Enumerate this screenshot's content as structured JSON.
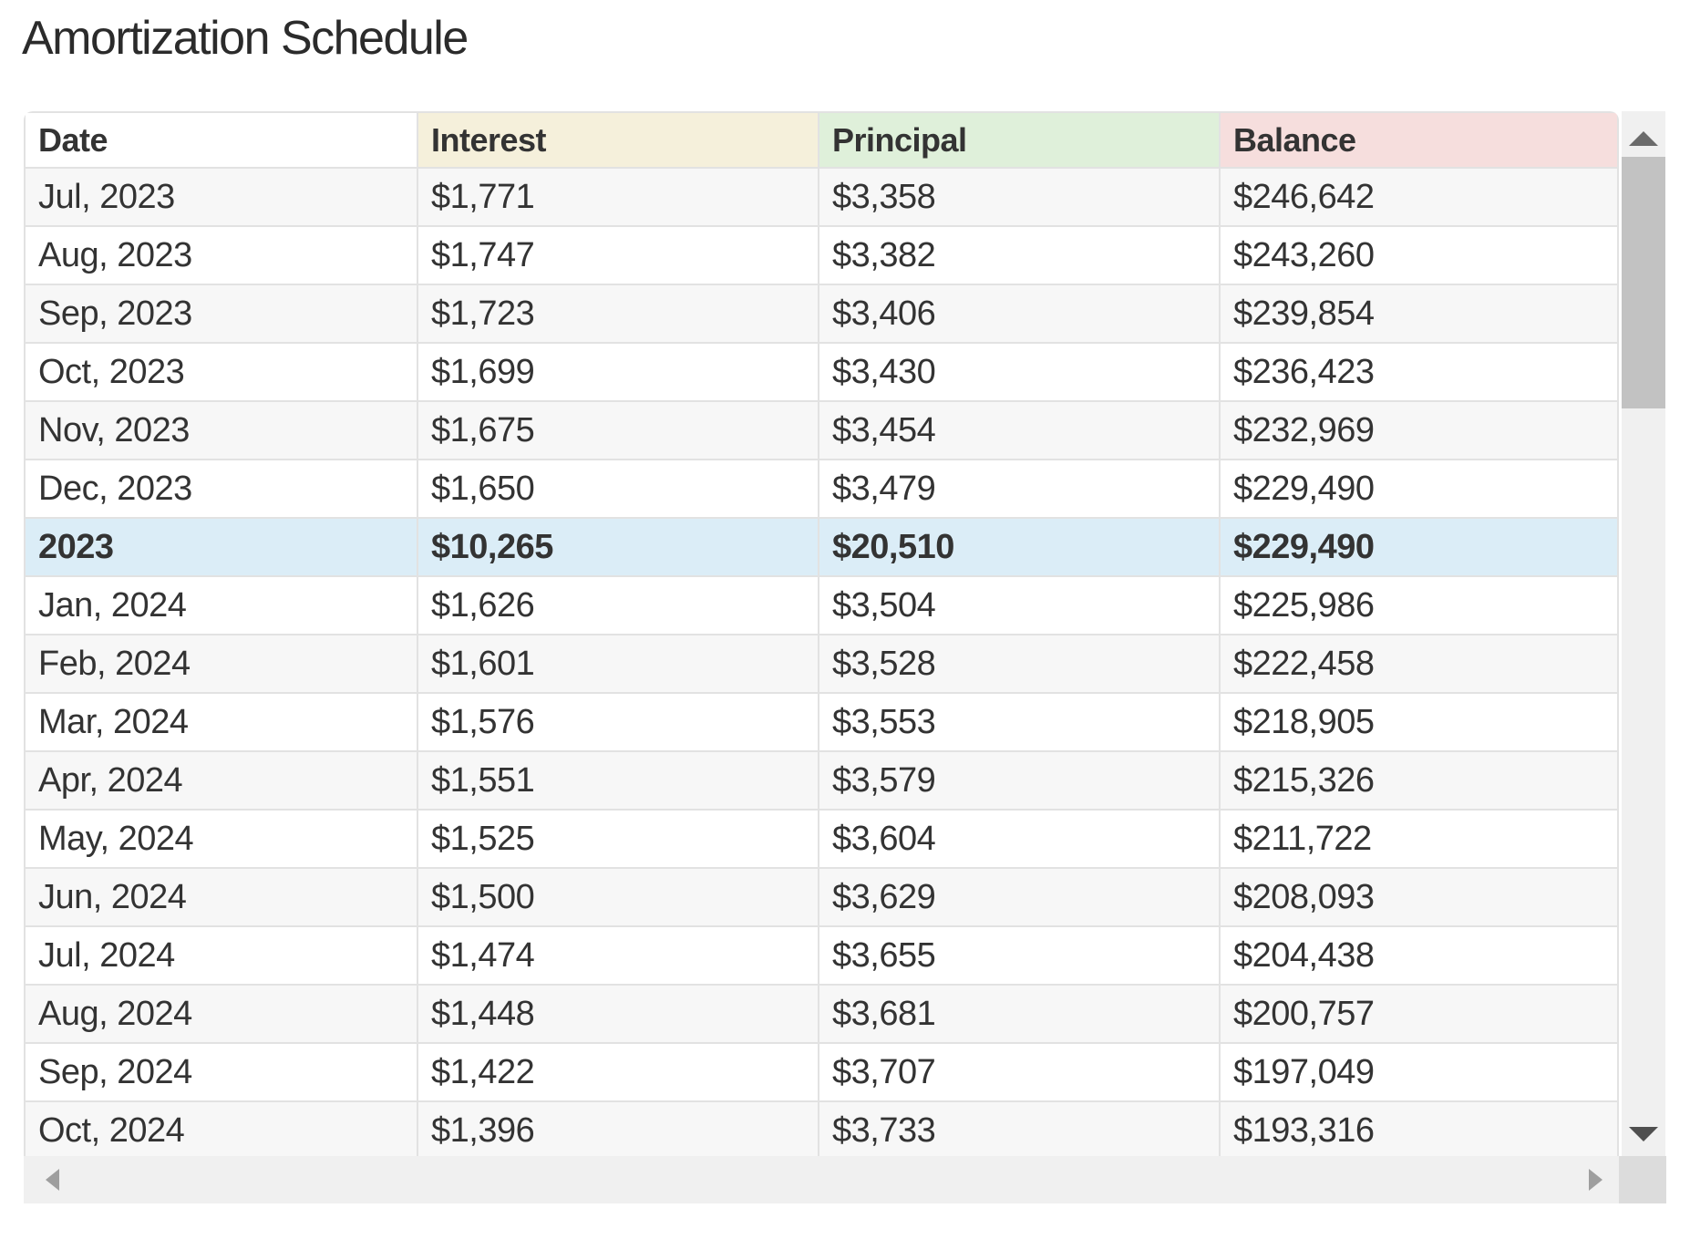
{
  "title": "Amortization Schedule",
  "table": {
    "columns": [
      {
        "id": "date",
        "label": "Date",
        "bg": "#ffffff"
      },
      {
        "id": "interest",
        "label": "Interest",
        "bg": "#f5f0db"
      },
      {
        "id": "principal",
        "label": "Principal",
        "bg": "#dff0da"
      },
      {
        "id": "balance",
        "label": "Balance",
        "bg": "#f6dedd"
      }
    ],
    "rows": [
      {
        "type": "month",
        "date": "Jul, 2023",
        "interest": "$1,771",
        "principal": "$3,358",
        "balance": "$246,642"
      },
      {
        "type": "month",
        "date": "Aug, 2023",
        "interest": "$1,747",
        "principal": "$3,382",
        "balance": "$243,260"
      },
      {
        "type": "month",
        "date": "Sep, 2023",
        "interest": "$1,723",
        "principal": "$3,406",
        "balance": "$239,854"
      },
      {
        "type": "month",
        "date": "Oct, 2023",
        "interest": "$1,699",
        "principal": "$3,430",
        "balance": "$236,423"
      },
      {
        "type": "month",
        "date": "Nov, 2023",
        "interest": "$1,675",
        "principal": "$3,454",
        "balance": "$232,969"
      },
      {
        "type": "month",
        "date": "Dec, 2023",
        "interest": "$1,650",
        "principal": "$3,479",
        "balance": "$229,490"
      },
      {
        "type": "summary",
        "date": "2023",
        "interest": "$10,265",
        "principal": "$20,510",
        "balance": "$229,490"
      },
      {
        "type": "month",
        "date": "Jan, 2024",
        "interest": "$1,626",
        "principal": "$3,504",
        "balance": "$225,986"
      },
      {
        "type": "month",
        "date": "Feb, 2024",
        "interest": "$1,601",
        "principal": "$3,528",
        "balance": "$222,458"
      },
      {
        "type": "month",
        "date": "Mar, 2024",
        "interest": "$1,576",
        "principal": "$3,553",
        "balance": "$218,905"
      },
      {
        "type": "month",
        "date": "Apr, 2024",
        "interest": "$1,551",
        "principal": "$3,579",
        "balance": "$215,326"
      },
      {
        "type": "month",
        "date": "May, 2024",
        "interest": "$1,525",
        "principal": "$3,604",
        "balance": "$211,722"
      },
      {
        "type": "month",
        "date": "Jun, 2024",
        "interest": "$1,500",
        "principal": "$3,629",
        "balance": "$208,093"
      },
      {
        "type": "month",
        "date": "Jul, 2024",
        "interest": "$1,474",
        "principal": "$3,655",
        "balance": "$204,438"
      },
      {
        "type": "month",
        "date": "Aug, 2024",
        "interest": "$1,448",
        "principal": "$3,681",
        "balance": "$200,757"
      },
      {
        "type": "month",
        "date": "Sep, 2024",
        "interest": "$1,422",
        "principal": "$3,707",
        "balance": "$197,049"
      },
      {
        "type": "month",
        "date": "Oct, 2024",
        "interest": "$1,396",
        "principal": "$3,733",
        "balance": "$193,316"
      }
    ]
  },
  "colors": {
    "title_text": "#2b2b2b",
    "cell_text": "#333333",
    "row_stripe": "#f7f7f7",
    "summary_row_bg": "#dbedf7",
    "cell_border": "#e2e2e2",
    "scrollbar_track": "#f0f0f0",
    "scrollbar_thumb": "#c2c2c2",
    "scrollbar_corner": "#dcdcdc"
  },
  "scrollbars": {
    "vertical": {
      "up_icon": "up-arrow",
      "down_icon": "down-arrow",
      "thumb": "scroll-thumb"
    },
    "horizontal": {
      "left_icon": "left-arrow",
      "right_icon": "right-arrow"
    }
  }
}
